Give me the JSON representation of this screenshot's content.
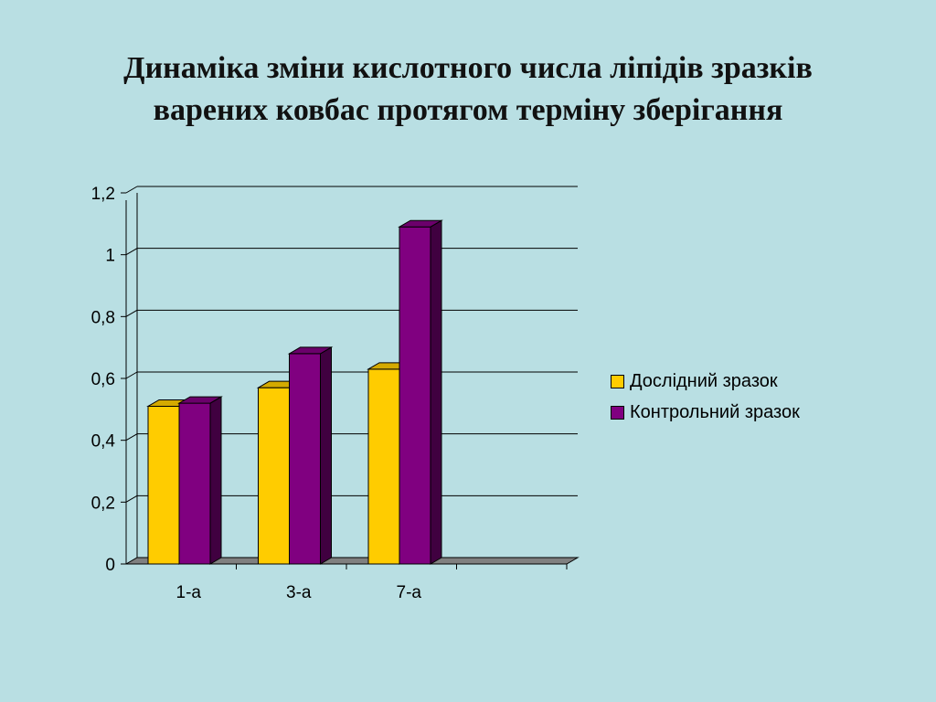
{
  "slide": {
    "title_line1": "Динаміка зміни кислотного числа  ліпідів зразків",
    "title_line2": "варених ковбас протягом терміну зберігання"
  },
  "chart_data": {
    "type": "bar",
    "categories": [
      "1-а",
      "3-а",
      "7-а",
      ""
    ],
    "series": [
      {
        "name": "Дослідний зразок",
        "values": [
          0.51,
          0.57,
          0.63,
          null
        ],
        "color": "#ffcc00"
      },
      {
        "name": "Контрольний зразок",
        "values": [
          0.52,
          0.68,
          1.09,
          null
        ],
        "color": "#800080"
      }
    ],
    "ylim": [
      0,
      1.2
    ],
    "yticks": [
      "0",
      "0,2",
      "0,4",
      "0,6",
      "0,8",
      "1",
      "1,2"
    ],
    "grid": true,
    "legend": "right",
    "style": "3d"
  }
}
